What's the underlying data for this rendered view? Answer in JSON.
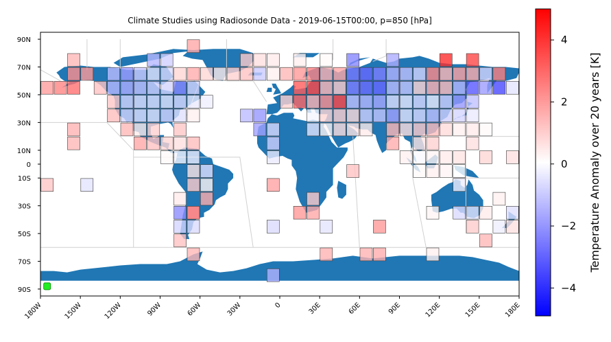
{
  "chart_data": {
    "type": "heatmap",
    "title": "Climate Studies using Radiosonde Data - 2019-06-15T00:00, p=850 [hPa]",
    "x_tick_labels": [
      "180W",
      "150W",
      "120W",
      "90W",
      "60W",
      "30W",
      "0",
      "30E",
      "60E",
      "90E",
      "120E",
      "150E",
      "180E"
    ],
    "x_tick_values": [
      -180,
      -150,
      -120,
      -90,
      -60,
      -30,
      0,
      30,
      60,
      90,
      120,
      150,
      180
    ],
    "y_tick_labels": [
      "90N",
      "70N",
      "50N",
      "30N",
      "10N",
      "0",
      "10S",
      "30S",
      "50S",
      "70S",
      "90S"
    ],
    "y_tick_values": [
      90,
      70,
      50,
      30,
      10,
      0,
      -10,
      -30,
      -50,
      -70,
      -90
    ],
    "xlim": [
      -180,
      180
    ],
    "ylim": [
      -95,
      95
    ],
    "colorbar": {
      "label": "Temperature Anomaly over 20 years [K]",
      "range": [
        -4.9,
        5.0
      ],
      "ticks": [
        4,
        2,
        0,
        -2,
        -4
      ],
      "tick_labels": [
        "4",
        "2",
        "0",
        "−2",
        "−4"
      ],
      "colormap": "bwr"
    },
    "marker": {
      "lon": -175,
      "lat": -88,
      "color": "#22ee22"
    },
    "cell_size_deg": 10,
    "cells": [
      [
        -175,
        55,
        1.9
      ],
      [
        -165,
        55,
        2.4
      ],
      [
        -155,
        75,
        1.4
      ],
      [
        -155,
        65,
        2.2
      ],
      [
        -155,
        55,
        2.8
      ],
      [
        -145,
        65,
        2.0
      ],
      [
        -135,
        55,
        1.2
      ],
      [
        -125,
        65,
        -1.3
      ],
      [
        -125,
        55,
        -1.4
      ],
      [
        -115,
        65,
        -1.9
      ],
      [
        -115,
        55,
        -1.6
      ],
      [
        -115,
        45,
        -0.8
      ],
      [
        -105,
        65,
        -1.0
      ],
      [
        -105,
        55,
        -1.2
      ],
      [
        -105,
        45,
        -0.6
      ],
      [
        -95,
        75,
        -1.4
      ],
      [
        -95,
        65,
        -0.5
      ],
      [
        -95,
        55,
        -0.9
      ],
      [
        -95,
        45,
        -0.6
      ],
      [
        -85,
        75,
        -0.9
      ],
      [
        -85,
        65,
        -0.7
      ],
      [
        -85,
        55,
        -0.8
      ],
      [
        -85,
        45,
        -0.5
      ],
      [
        -75,
        65,
        0.8
      ],
      [
        -75,
        55,
        -2.3
      ],
      [
        -75,
        45,
        -0.7
      ],
      [
        -65,
        85,
        1.7
      ],
      [
        -65,
        65,
        1.6
      ],
      [
        -65,
        55,
        -0.8
      ],
      [
        -65,
        45,
        -0.4
      ],
      [
        -55,
        65,
        0.8
      ],
      [
        -55,
        45,
        -0.3
      ],
      [
        -45,
        65,
        0.4
      ],
      [
        -35,
        65,
        0.9
      ],
      [
        -25,
        75,
        1.0
      ],
      [
        -25,
        65,
        1.2
      ],
      [
        -15,
        75,
        0.6
      ],
      [
        -15,
        65,
        -1.0
      ],
      [
        -5,
        75,
        0.4
      ],
      [
        -5,
        65,
        0.3
      ],
      [
        -125,
        45,
        1.1
      ],
      [
        -115,
        35,
        -0.8
      ],
      [
        -105,
        35,
        -0.6
      ],
      [
        -95,
        35,
        -0.5
      ],
      [
        -85,
        35,
        -0.8
      ],
      [
        -75,
        35,
        -0.6
      ],
      [
        -65,
        35,
        0.3
      ],
      [
        -125,
        35,
        1.3
      ],
      [
        -115,
        25,
        1.4
      ],
      [
        -95,
        25,
        0.9
      ],
      [
        -75,
        25,
        1.1
      ],
      [
        -105,
        25,
        0.4
      ],
      [
        -155,
        25,
        1.5
      ],
      [
        -155,
        15,
        1.4
      ],
      [
        -105,
        15,
        1.7
      ],
      [
        -95,
        15,
        1.2
      ],
      [
        -85,
        15,
        0.8
      ],
      [
        -75,
        15,
        0.6
      ],
      [
        -65,
        15,
        1.3
      ],
      [
        -85,
        5,
        0.1
      ],
      [
        -75,
        5,
        -0.2
      ],
      [
        -65,
        5,
        -0.3
      ],
      [
        -65,
        -5,
        0.5
      ],
      [
        -55,
        -5,
        -0.6
      ],
      [
        -65,
        -15,
        1.0
      ],
      [
        -55,
        -15,
        0.2
      ],
      [
        -175,
        -15,
        1.1
      ],
      [
        -145,
        -15,
        -0.5
      ],
      [
        -55,
        -25,
        1.6
      ],
      [
        -75,
        -25,
        0.4
      ],
      [
        -75,
        -35,
        -2.2
      ],
      [
        -65,
        -35,
        1.0
      ],
      [
        -65,
        -35,
        2.6
      ],
      [
        -75,
        -45,
        -0.8
      ],
      [
        -65,
        -45,
        -0.7
      ],
      [
        -75,
        -55,
        1.2
      ],
      [
        -65,
        -65,
        1.4
      ],
      [
        -25,
        35,
        -1.3
      ],
      [
        -15,
        35,
        -2.0
      ],
      [
        -15,
        25,
        -1.8
      ],
      [
        -5,
        25,
        -0.7
      ],
      [
        -5,
        15,
        -0.9
      ],
      [
        -5,
        5,
        -0.4
      ],
      [
        -5,
        -15,
        1.8
      ],
      [
        -5,
        -45,
        -0.7
      ],
      [
        -5,
        -80,
        -1.5
      ],
      [
        5,
        45,
        0.9
      ],
      [
        5,
        65,
        1.4
      ],
      [
        15,
        55,
        3.2
      ],
      [
        15,
        45,
        3.0
      ],
      [
        25,
        55,
        3.6
      ],
      [
        25,
        45,
        1.5
      ],
      [
        35,
        55,
        1.4
      ],
      [
        35,
        45,
        2.2
      ],
      [
        45,
        55,
        1.0
      ],
      [
        45,
        45,
        3.6
      ],
      [
        55,
        55,
        -2.5
      ],
      [
        55,
        45,
        -1.2
      ],
      [
        65,
        55,
        -2.8
      ],
      [
        65,
        45,
        -1.4
      ],
      [
        75,
        55,
        -2.9
      ],
      [
        75,
        45,
        -1.7
      ],
      [
        85,
        55,
        -1.3
      ],
      [
        85,
        45,
        -0.6
      ],
      [
        95,
        55,
        -1.1
      ],
      [
        95,
        45,
        -0.4
      ],
      [
        105,
        55,
        0.8
      ],
      [
        105,
        45,
        -0.7
      ],
      [
        115,
        55,
        1.5
      ],
      [
        115,
        45,
        -0.3
      ],
      [
        125,
        55,
        1.3
      ],
      [
        125,
        45,
        -0.9
      ],
      [
        135,
        55,
        -1.4
      ],
      [
        135,
        45,
        -2.0
      ],
      [
        145,
        55,
        -3.2
      ],
      [
        145,
        45,
        -1.2
      ],
      [
        155,
        55,
        -1.9
      ],
      [
        165,
        55,
        -3.5
      ],
      [
        175,
        55,
        -0.5
      ],
      [
        15,
        65,
        2.0
      ],
      [
        25,
        65,
        2.4
      ],
      [
        35,
        65,
        1.5
      ],
      [
        45,
        65,
        1.7
      ],
      [
        55,
        65,
        -2.6
      ],
      [
        65,
        65,
        -2.9
      ],
      [
        75,
        65,
        -2.5
      ],
      [
        85,
        65,
        -1.5
      ],
      [
        95,
        65,
        -1.2
      ],
      [
        105,
        65,
        -0.8
      ],
      [
        115,
        65,
        2.3
      ],
      [
        125,
        65,
        1.4
      ],
      [
        135,
        65,
        1.8
      ],
      [
        145,
        65,
        1.6
      ],
      [
        155,
        65,
        -0.8
      ],
      [
        165,
        65,
        2.5
      ],
      [
        125,
        75,
        4.1
      ],
      [
        145,
        75,
        3.6
      ],
      [
        55,
        75,
        -2.3
      ],
      [
        85,
        75,
        -1.6
      ],
      [
        15,
        75,
        0.3
      ],
      [
        35,
        75,
        0.1
      ],
      [
        25,
        35,
        -0.2
      ],
      [
        35,
        35,
        0.8
      ],
      [
        45,
        35,
        0.9
      ],
      [
        55,
        35,
        0.7
      ],
      [
        65,
        35,
        -0.9
      ],
      [
        75,
        35,
        -1.1
      ],
      [
        85,
        35,
        -1.8
      ],
      [
        95,
        35,
        -0.5
      ],
      [
        105,
        35,
        -0.7
      ],
      [
        115,
        35,
        -1.2
      ],
      [
        125,
        35,
        -0.9
      ],
      [
        135,
        35,
        -0.8
      ],
      [
        145,
        35,
        -0.4
      ],
      [
        25,
        25,
        -0.5
      ],
      [
        35,
        25,
        0.2
      ],
      [
        45,
        25,
        0.6
      ],
      [
        55,
        25,
        0.5
      ],
      [
        65,
        25,
        0.4
      ],
      [
        85,
        25,
        1.4
      ],
      [
        95,
        25,
        0.6
      ],
      [
        105,
        25,
        1.0
      ],
      [
        115,
        25,
        1.3
      ],
      [
        125,
        25,
        0.7
      ],
      [
        135,
        25,
        0.3
      ],
      [
        145,
        25,
        0.4
      ],
      [
        155,
        25,
        0.1
      ],
      [
        85,
        15,
        1.6
      ],
      [
        105,
        15,
        0.5
      ],
      [
        115,
        15,
        0.9
      ],
      [
        145,
        15,
        0.6
      ],
      [
        95,
        5,
        0.3
      ],
      [
        105,
        5,
        -0.1
      ],
      [
        115,
        5,
        0.2
      ],
      [
        125,
        5,
        0.4
      ],
      [
        135,
        5,
        0.5
      ],
      [
        155,
        5,
        0.8
      ],
      [
        175,
        5,
        0.6
      ],
      [
        55,
        -5,
        1.2
      ],
      [
        105,
        -5,
        0.1
      ],
      [
        115,
        -5,
        0.3
      ],
      [
        125,
        -5,
        0.2
      ],
      [
        135,
        -5,
        0.0
      ],
      [
        135,
        -15,
        -0.3
      ],
      [
        25,
        -25,
        1.0
      ],
      [
        25,
        -35,
        1.7
      ],
      [
        15,
        -35,
        2.0
      ],
      [
        35,
        -45,
        -0.5
      ],
      [
        75,
        -45,
        2.0
      ],
      [
        115,
        -35,
        0.2
      ],
      [
        135,
        -35,
        -0.7
      ],
      [
        145,
        -35,
        -0.5
      ],
      [
        155,
        -35,
        0.4
      ],
      [
        165,
        -25,
        0.3
      ],
      [
        175,
        -35,
        -0.6
      ],
      [
        145,
        -45,
        1.0
      ],
      [
        165,
        -45,
        -0.3
      ],
      [
        175,
        -45,
        0.6
      ],
      [
        155,
        -55,
        1.4
      ],
      [
        35,
        -65,
        1.5
      ],
      [
        65,
        -65,
        1.5
      ],
      [
        75,
        -65,
        1.6
      ],
      [
        115,
        -65,
        0.3
      ]
    ]
  }
}
